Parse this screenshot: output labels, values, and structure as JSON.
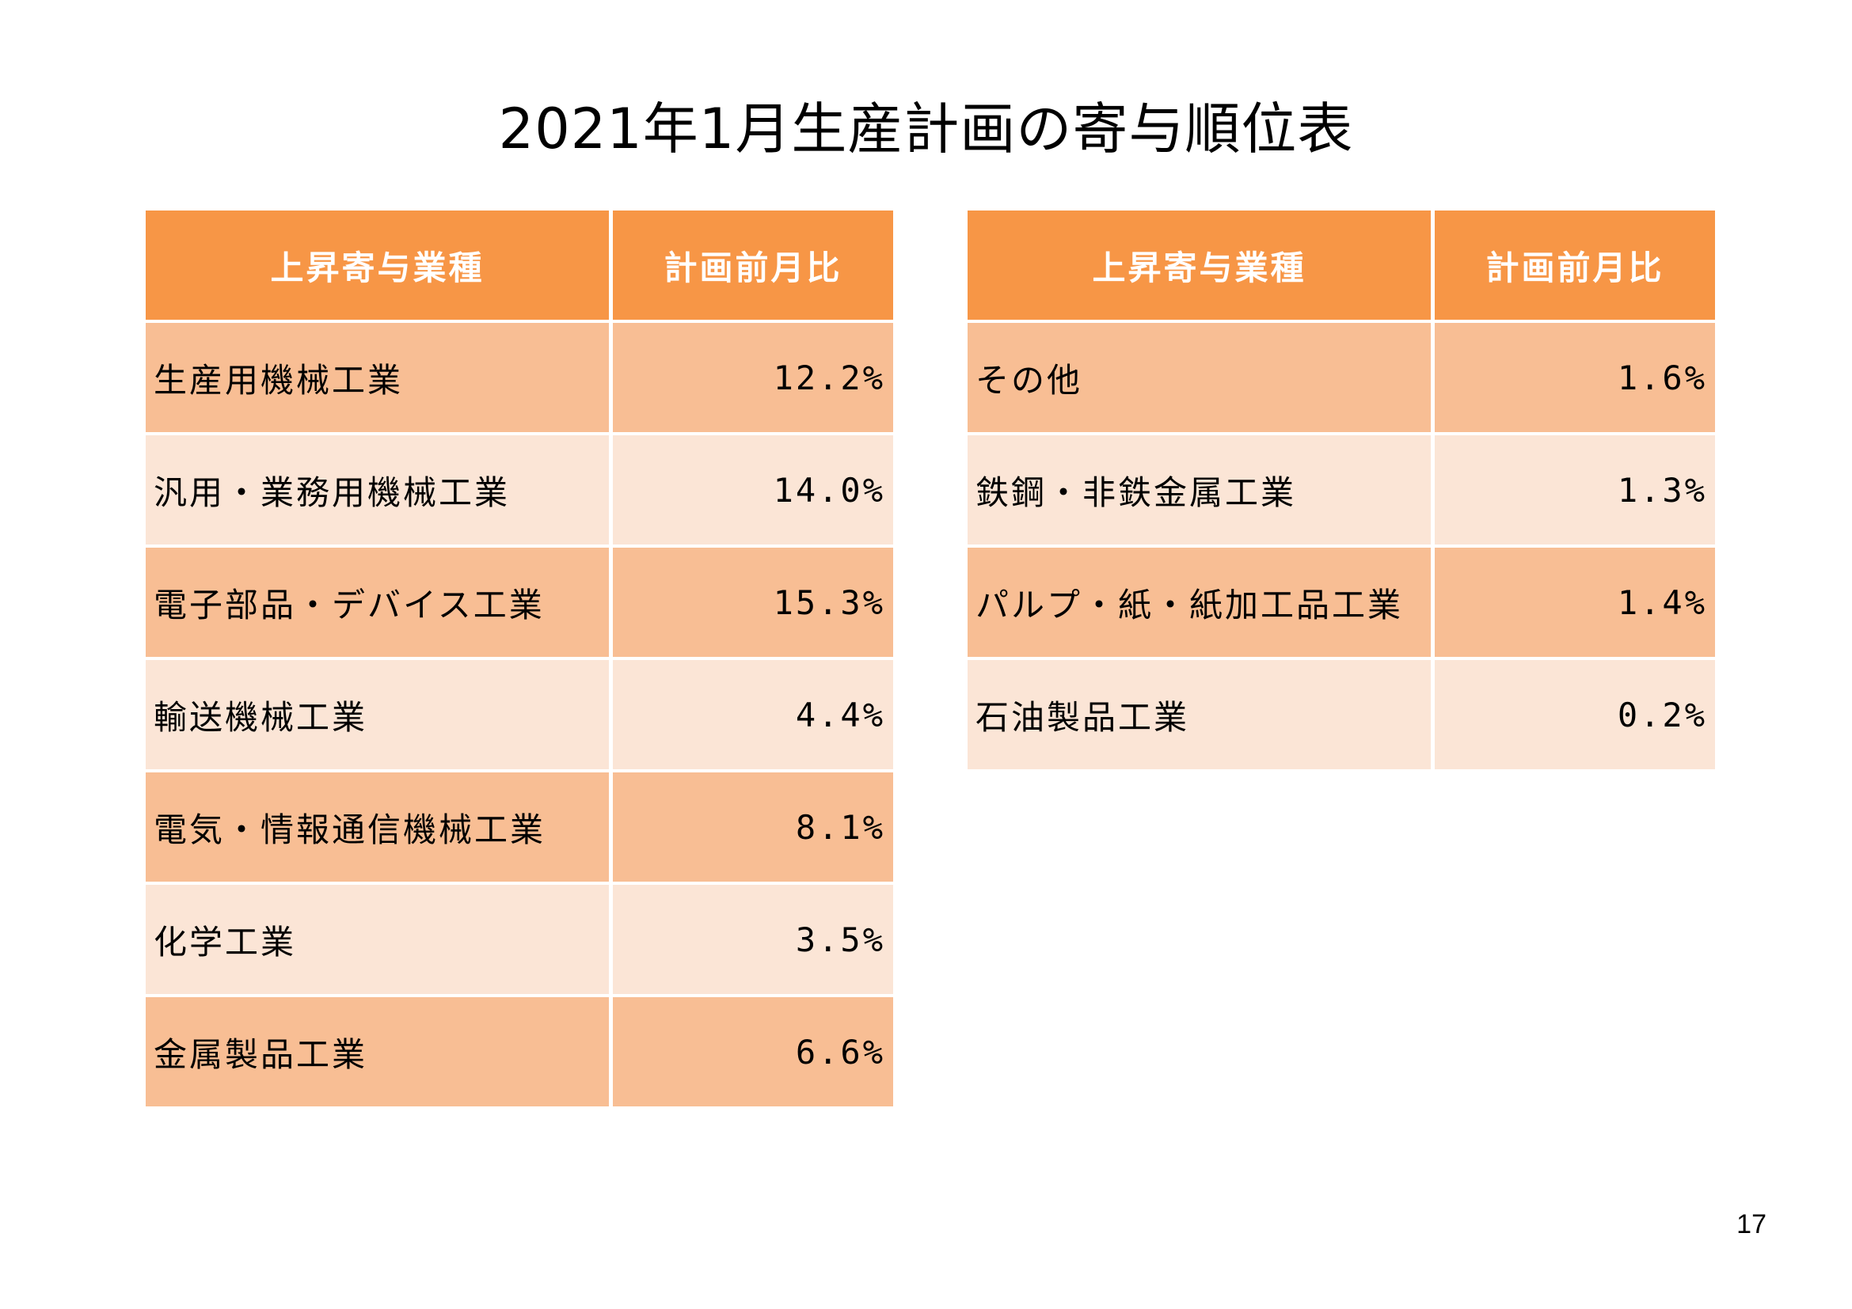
{
  "title": "2021年1月生産計画の寄与順位表",
  "tables": {
    "left": {
      "headers": {
        "industry": "上昇寄与業種",
        "change": "計画前月比"
      },
      "rows": [
        {
          "industry": "生産用機械工業",
          "change": "12.2%"
        },
        {
          "industry": "汎用・業務用機械工業",
          "change": "14.0%"
        },
        {
          "industry": "電子部品・デバイス工業",
          "change": "15.3%"
        },
        {
          "industry": "輸送機械工業",
          "change": "4.4%"
        },
        {
          "industry": "電気・情報通信機械工業",
          "change": "8.1%"
        },
        {
          "industry": "化学工業",
          "change": "3.5%"
        },
        {
          "industry": "金属製品工業",
          "change": "6.6%"
        }
      ]
    },
    "right": {
      "headers": {
        "industry": "上昇寄与業種",
        "change": "計画前月比"
      },
      "rows": [
        {
          "industry": "その他",
          "change": "1.6%"
        },
        {
          "industry": "鉄鋼・非鉄金属工業",
          "change": "1.3%"
        },
        {
          "industry": "パルプ・紙・紙加工品工業",
          "change": "1.4%"
        },
        {
          "industry": "石油製品工業",
          "change": "0.2%"
        }
      ]
    }
  },
  "colors": {
    "header": "#f79646",
    "row_dark": "#f8be94",
    "row_light": "#fbe5d6"
  },
  "page_number": "17"
}
